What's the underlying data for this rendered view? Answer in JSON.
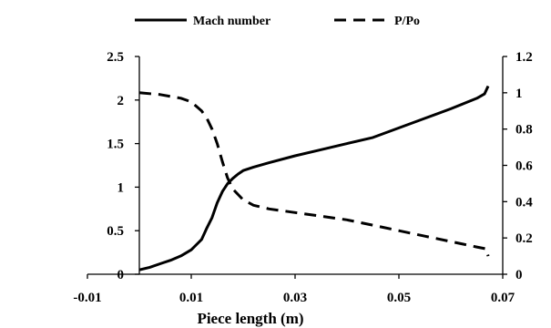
{
  "chart_data": {
    "type": "line",
    "title": "",
    "xlabel": "Piece length (m)",
    "ylabel": "",
    "y2label": "",
    "xlim": [
      -0.01,
      0.07
    ],
    "ylim": [
      0,
      2.5
    ],
    "y2lim": [
      0,
      1.2
    ],
    "x_ticks": [
      "-0.01",
      "0.01",
      "0.03",
      "0.05",
      "0.07"
    ],
    "y_ticks": [
      "0",
      "0.5",
      "1",
      "1.5",
      "2",
      "2.5"
    ],
    "y2_ticks": [
      "0",
      "0.2",
      "0.4",
      "0.6",
      "0.8",
      "1",
      "1.2"
    ],
    "grid": false,
    "legend_position": "top",
    "series": [
      {
        "name": "Mach number",
        "axis": "left",
        "line_style": "solid",
        "color": "#000000",
        "x": [
          0.0,
          0.002,
          0.004,
          0.006,
          0.008,
          0.01,
          0.011,
          0.012,
          0.013,
          0.014,
          0.015,
          0.016,
          0.017,
          0.018,
          0.019,
          0.02,
          0.022,
          0.025,
          0.03,
          0.035,
          0.04,
          0.045,
          0.05,
          0.055,
          0.06,
          0.065,
          0.0665,
          0.0672
        ],
        "y": [
          0.05,
          0.08,
          0.12,
          0.16,
          0.21,
          0.28,
          0.34,
          0.4,
          0.53,
          0.65,
          0.82,
          0.95,
          1.04,
          1.1,
          1.15,
          1.19,
          1.23,
          1.28,
          1.36,
          1.43,
          1.5,
          1.57,
          1.68,
          1.79,
          1.9,
          2.02,
          2.07,
          2.16
        ]
      },
      {
        "name": "P/Po",
        "axis": "right",
        "line_style": "dashed",
        "color": "#000000",
        "x": [
          0.0,
          0.004,
          0.008,
          0.01,
          0.012,
          0.013,
          0.014,
          0.015,
          0.016,
          0.017,
          0.018,
          0.019,
          0.02,
          0.022,
          0.025,
          0.03,
          0.035,
          0.04,
          0.045,
          0.05,
          0.055,
          0.06,
          0.065,
          0.0668,
          0.0672
        ],
        "y": [
          1.0,
          0.99,
          0.97,
          0.95,
          0.9,
          0.86,
          0.8,
          0.72,
          0.62,
          0.53,
          0.47,
          0.44,
          0.41,
          0.38,
          0.36,
          0.34,
          0.32,
          0.3,
          0.27,
          0.24,
          0.21,
          0.18,
          0.15,
          0.14,
          0.1
        ]
      }
    ]
  }
}
